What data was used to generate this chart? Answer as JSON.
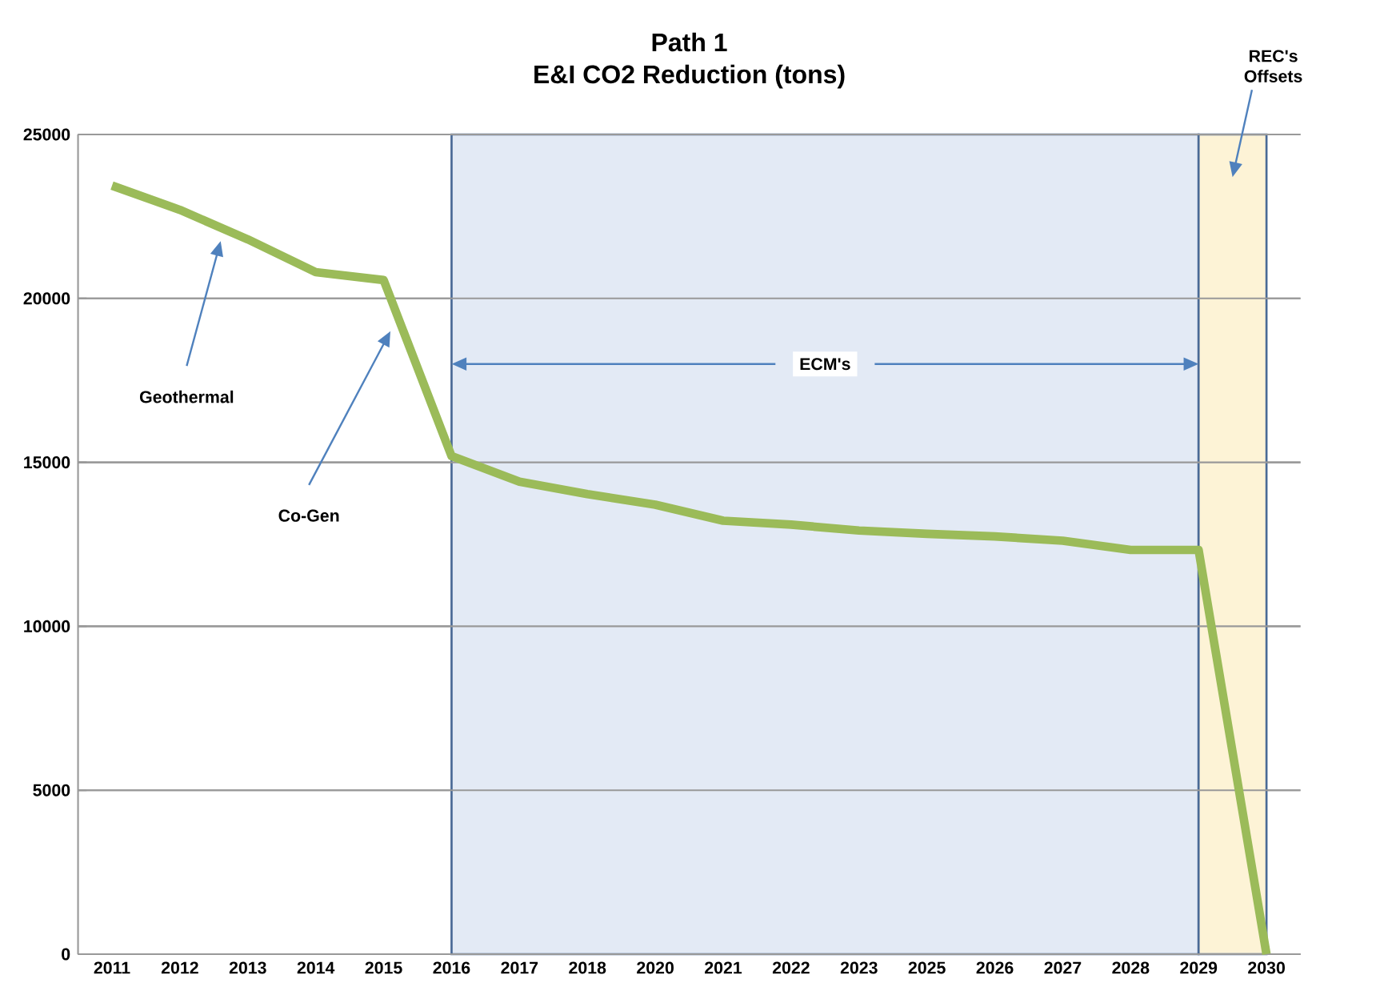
{
  "chart_data": {
    "type": "line",
    "title": "Path 1",
    "subtitle": "E&I CO2 Reduction  (tons)",
    "categories": [
      "2011",
      "2012",
      "2013",
      "2014",
      "2015",
      "2016",
      "2017",
      "2018",
      "2020",
      "2021",
      "2022",
      "2023",
      "2025",
      "2026",
      "2027",
      "2028",
      "2029",
      "2030"
    ],
    "values": [
      23440,
      22700,
      21800,
      20800,
      20560,
      15190,
      14410,
      14030,
      13710,
      13220,
      13100,
      12920,
      12820,
      12740,
      12610,
      12330,
      12330,
      0
    ],
    "color": "#9bbb59",
    "marker": "none",
    "line_style": "solid",
    "ylim": [
      0,
      25000
    ],
    "yticks": [
      0,
      5000,
      10000,
      15000,
      20000,
      25000
    ],
    "grid": "y",
    "bands": [
      {
        "axis": "x",
        "from": "2016",
        "to": "2029",
        "label": "ECM's",
        "color": "#e3eaf5"
      },
      {
        "axis": "x",
        "from": "2029",
        "to": "2030",
        "label": "REC's Offsets",
        "color": "#fdf3d6"
      }
    ],
    "annotations": [
      "Geothermal",
      "Co-Gen"
    ]
  }
}
